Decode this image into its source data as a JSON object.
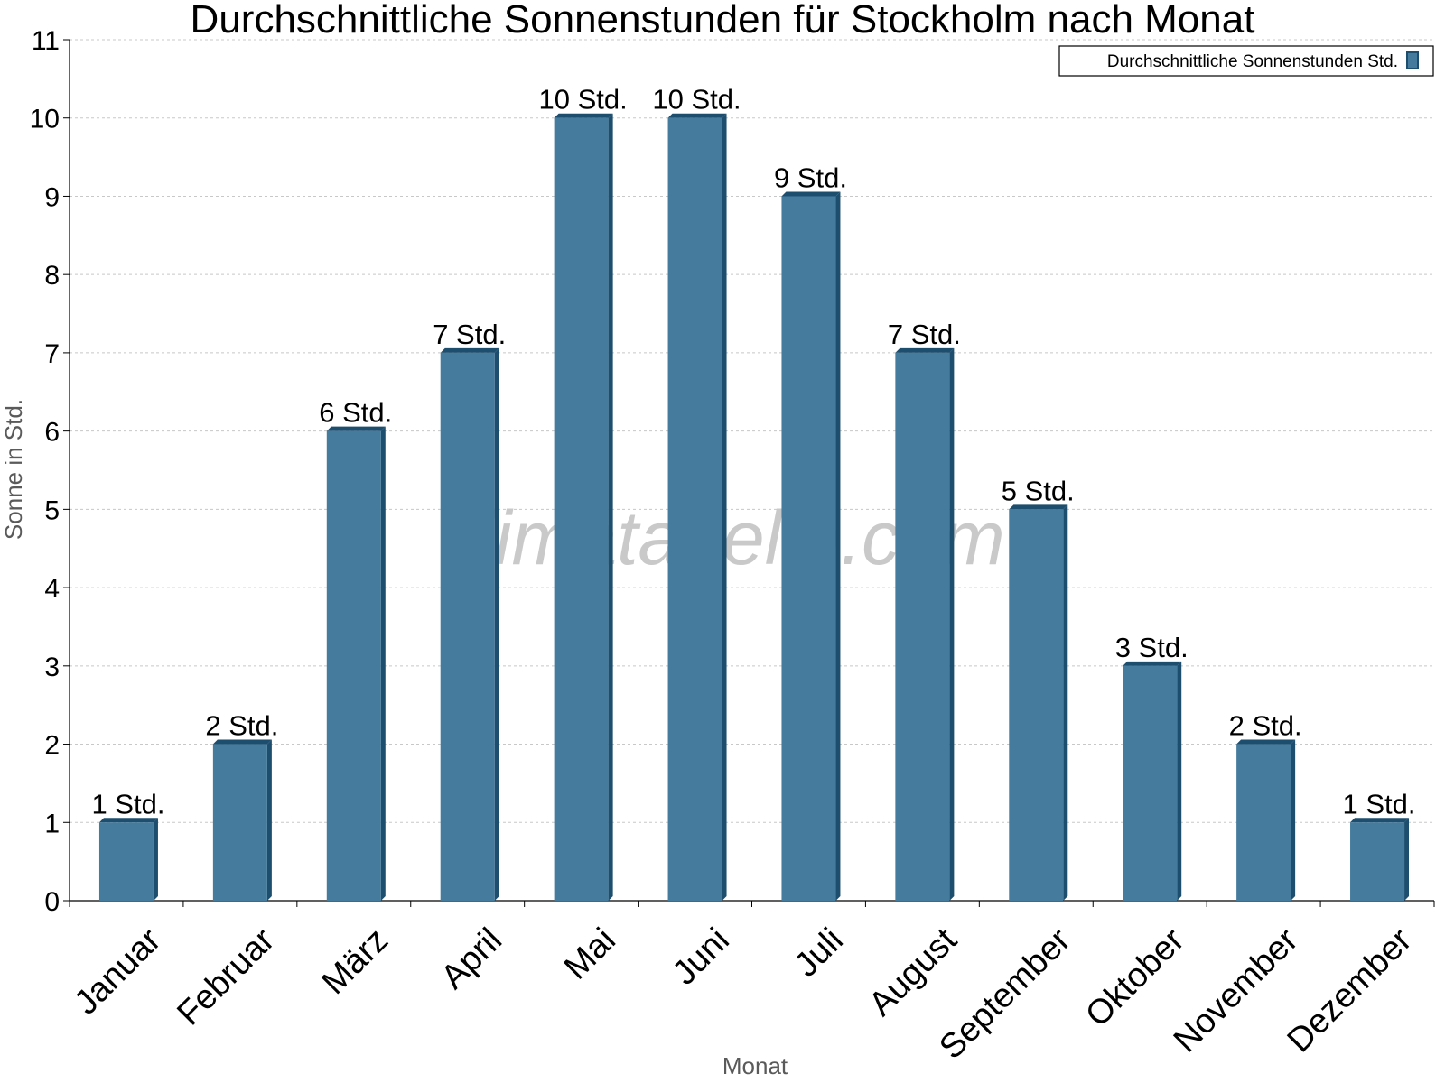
{
  "chart_data": {
    "type": "bar",
    "title": "Durchschnittliche Sonnenstunden für Stockholm nach Monat",
    "xlabel": "Monat",
    "ylabel": "Sonne in Std.",
    "categories": [
      "Januar",
      "Februar",
      "März",
      "April",
      "Mai",
      "Juni",
      "Juli",
      "August",
      "September",
      "Oktober",
      "November",
      "Dezember"
    ],
    "series": [
      {
        "name": "Durchschnittliche Sonnenstunden Std.",
        "values": [
          1,
          2,
          6,
          7,
          10,
          10,
          9,
          7,
          5,
          3,
          2,
          1
        ],
        "labels": [
          "1 Std.",
          "2 Std.",
          "6 Std.",
          "7 Std.",
          "10 Std.",
          "10 Std.",
          "9 Std.",
          "7 Std.",
          "5 Std.",
          "3 Std.",
          "2 Std.",
          "1 Std."
        ],
        "color": "#457b9d",
        "shade_color": "#1d4e6e"
      }
    ],
    "ylim": [
      0,
      11
    ],
    "yticks": [
      "0",
      "1",
      "2",
      "3",
      "4",
      "5",
      "6",
      "7",
      "8",
      "9",
      "10",
      "11"
    ],
    "grid": true,
    "legend_position": "top-right",
    "watermark": "klimatabelle.com"
  }
}
